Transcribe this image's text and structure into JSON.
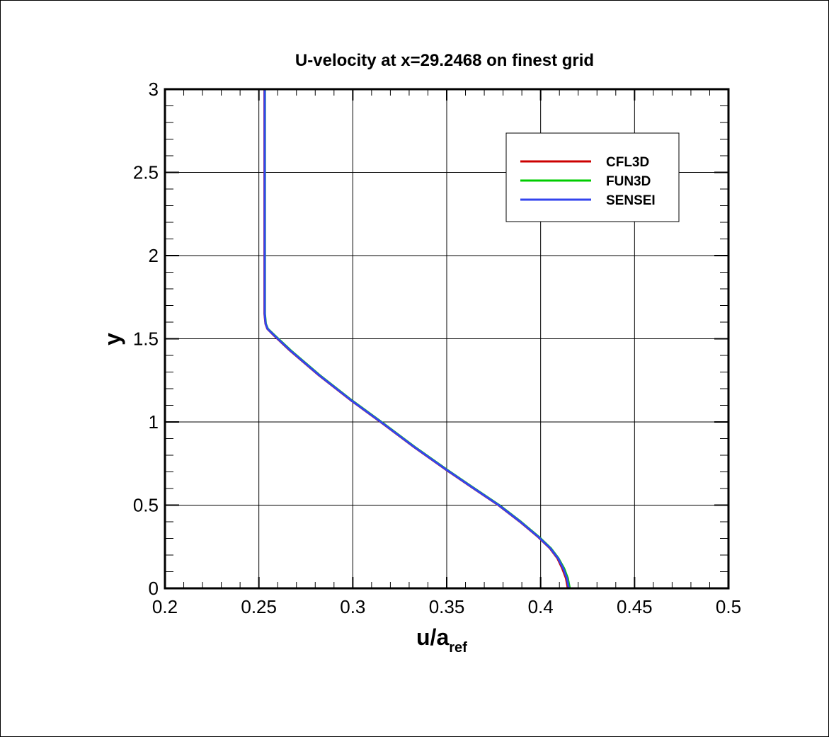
{
  "chart_data": {
    "type": "line",
    "title": "U-velocity at x=29.2468 on finest grid",
    "xlabel_main": "u/a",
    "xlabel_sub": "ref",
    "ylabel": "y",
    "xlim": [
      0.2,
      0.5
    ],
    "ylim": [
      0,
      3
    ],
    "x_ticks": [
      "0.2",
      "0.25",
      "0.3",
      "0.35",
      "0.4",
      "0.45",
      "0.5"
    ],
    "y_ticks": [
      "0",
      "0.5",
      "1",
      "1.5",
      "2",
      "2.5",
      "3"
    ],
    "grid": true,
    "legend_position": "top-right",
    "series": [
      {
        "name": "CFL3D",
        "color": "#cc0000",
        "points": [
          [
            0.4145,
            0.0
          ],
          [
            0.4135,
            0.06
          ],
          [
            0.4115,
            0.12
          ],
          [
            0.409,
            0.18
          ],
          [
            0.405,
            0.24
          ],
          [
            0.3985,
            0.31
          ],
          [
            0.389,
            0.4
          ],
          [
            0.3775,
            0.5
          ],
          [
            0.363,
            0.61
          ],
          [
            0.35,
            0.71
          ],
          [
            0.3325,
            0.85
          ],
          [
            0.316,
            0.99
          ],
          [
            0.299,
            1.13
          ],
          [
            0.282,
            1.28
          ],
          [
            0.2665,
            1.43
          ],
          [
            0.258,
            1.52
          ],
          [
            0.2545,
            1.56
          ],
          [
            0.2535,
            1.59
          ],
          [
            0.253,
            1.65
          ],
          [
            0.253,
            2.0
          ],
          [
            0.253,
            2.5
          ],
          [
            0.253,
            3.0
          ]
        ]
      },
      {
        "name": "FUN3D",
        "color": "#00cc00",
        "points": [
          [
            0.4155,
            0.0
          ],
          [
            0.4145,
            0.06
          ],
          [
            0.4125,
            0.12
          ],
          [
            0.4095,
            0.18
          ],
          [
            0.4055,
            0.24
          ],
          [
            0.399,
            0.31
          ],
          [
            0.3895,
            0.4
          ],
          [
            0.378,
            0.5
          ],
          [
            0.3635,
            0.61
          ],
          [
            0.3505,
            0.71
          ],
          [
            0.333,
            0.85
          ],
          [
            0.3165,
            0.99
          ],
          [
            0.2995,
            1.13
          ],
          [
            0.2825,
            1.28
          ],
          [
            0.267,
            1.43
          ],
          [
            0.2585,
            1.52
          ],
          [
            0.2548,
            1.56
          ],
          [
            0.2537,
            1.59
          ],
          [
            0.2532,
            1.65
          ],
          [
            0.2532,
            2.0
          ],
          [
            0.2532,
            2.5
          ],
          [
            0.2532,
            3.0
          ]
        ]
      },
      {
        "name": "SENSEI",
        "color": "#3344ee",
        "points": [
          [
            0.415,
            0.0
          ],
          [
            0.414,
            0.06
          ],
          [
            0.412,
            0.12
          ],
          [
            0.4093,
            0.18
          ],
          [
            0.4052,
            0.24
          ],
          [
            0.3987,
            0.31
          ],
          [
            0.3892,
            0.4
          ],
          [
            0.3777,
            0.5
          ],
          [
            0.3632,
            0.61
          ],
          [
            0.3502,
            0.71
          ],
          [
            0.3327,
            0.85
          ],
          [
            0.3162,
            0.99
          ],
          [
            0.2992,
            1.13
          ],
          [
            0.2822,
            1.28
          ],
          [
            0.2667,
            1.43
          ],
          [
            0.2582,
            1.52
          ],
          [
            0.2546,
            1.56
          ],
          [
            0.2536,
            1.59
          ],
          [
            0.2531,
            1.65
          ],
          [
            0.2531,
            2.0
          ],
          [
            0.2531,
            2.5
          ],
          [
            0.2531,
            3.0
          ]
        ]
      }
    ]
  }
}
